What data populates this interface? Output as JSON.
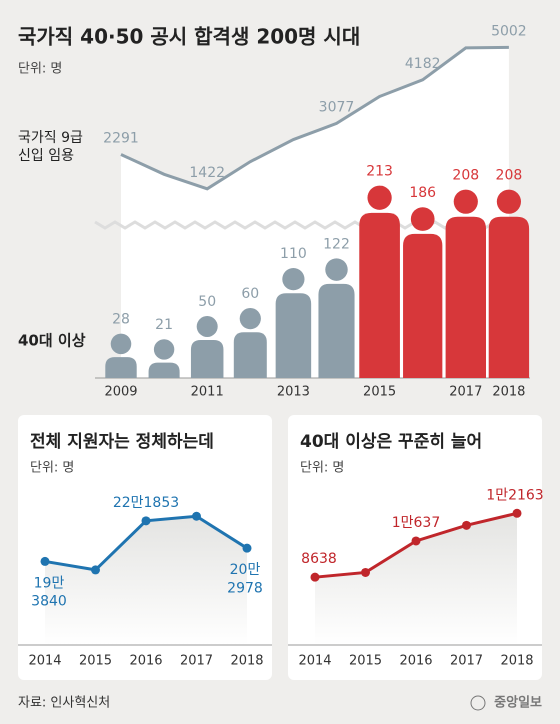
{
  "title": "국가직 40·50 공시 합격생 200명 시대",
  "unit": "단위: 명",
  "source": "자료: 인사혁신처",
  "logo": "중앙일보",
  "chart_data": [
    {
      "type": "combo",
      "categories": [
        "2009",
        null,
        "2011",
        null,
        "2013",
        null,
        "2015",
        null,
        "2017",
        "2018"
      ],
      "ylim": [
        0,
        6000
      ],
      "series": [
        {
          "name": "국가직 9급\n신입 임용",
          "type": "line",
          "color": "#8d9ea9",
          "values": [
            2291,
            1790,
            1422,
            2110,
            2670,
            3077,
            3760,
            4182,
            4990,
            5002
          ],
          "value_labels": [
            "2291",
            null,
            "1422",
            null,
            null,
            "3077",
            null,
            "4182",
            null,
            "5002"
          ]
        },
        {
          "name": "40대 이상",
          "type": "person",
          "colors": [
            "#8d9ea9",
            "#8d9ea9",
            "#8d9ea9",
            "#8d9ea9",
            "#8d9ea9",
            "#8d9ea9",
            "#d7373a",
            "#d7373a",
            "#d7373a",
            "#d7373a"
          ],
          "values": [
            28,
            21,
            50,
            60,
            110,
            122,
            213,
            186,
            208,
            208
          ]
        }
      ]
    },
    {
      "type": "line",
      "title": "전체 지원자는 정체하는데",
      "unit": "단위: 명",
      "categories": [
        "2014",
        "2015",
        "2016",
        "2017",
        "2018"
      ],
      "color": "#1f74b0",
      "ylim": [
        150000,
        250000
      ],
      "values": [
        193840,
        188000,
        221853,
        225000,
        202978
      ],
      "value_labels": [
        "19만\n3840",
        null,
        "22만1853",
        null,
        "20만\n2978"
      ]
    },
    {
      "type": "line",
      "title": "40대 이상은 꾸준히 늘어",
      "unit": "단위: 명",
      "categories": [
        "2014",
        "2015",
        "2016",
        "2017",
        "2018"
      ],
      "color": "#c0262b",
      "ylim": [
        6000,
        14000
      ],
      "values": [
        8638,
        8900,
        10637,
        11500,
        12163
      ],
      "value_labels": [
        "8638",
        null,
        "1만637",
        null,
        "1만2163"
      ]
    }
  ]
}
